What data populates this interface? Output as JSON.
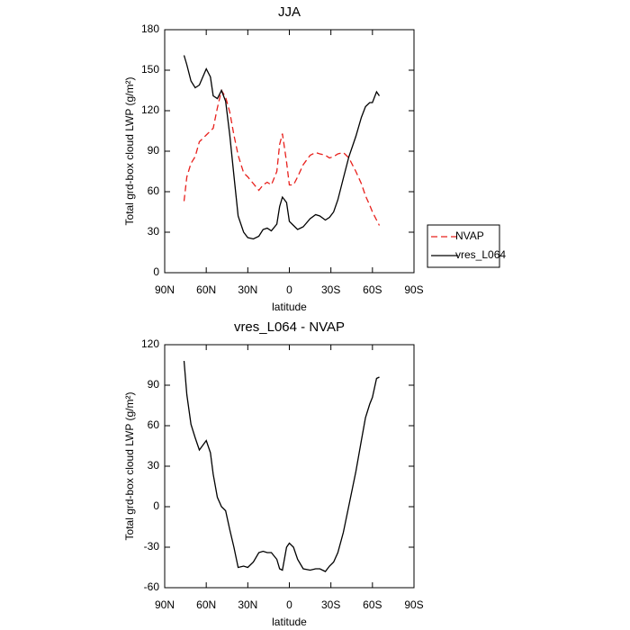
{
  "chart_data": [
    {
      "type": "line",
      "title": "JJA",
      "xlabel": "latitude",
      "ylabel": "Total grd-box cloud LWP (g/m²)",
      "x": [
        76,
        74,
        71,
        68,
        65,
        60,
        57,
        55,
        52,
        49,
        46,
        43,
        40,
        37,
        33,
        30,
        26,
        22,
        19,
        16,
        13,
        9,
        7,
        5,
        2,
        0,
        -3,
        -6,
        -10,
        -15,
        -19,
        -22,
        -26,
        -29,
        -32,
        -35,
        -39,
        -43,
        -48,
        -52,
        -55,
        -58,
        -60,
        -63,
        -65
      ],
      "series": [
        {
          "name": "NVAP",
          "color": "#e8201c",
          "dashed": true,
          "values": [
            53,
            71,
            81,
            86,
            97,
            102,
            105,
            107,
            122,
            135,
            130,
            119,
            102,
            87,
            74,
            71,
            66,
            61,
            65,
            67,
            65,
            75,
            95,
            103,
            82,
            65,
            65,
            71,
            80,
            87,
            89,
            88,
            87,
            85,
            86,
            88,
            89,
            85,
            75,
            66,
            57,
            50,
            45,
            39,
            35
          ]
        },
        {
          "name": "vres_L064",
          "color": "#000000",
          "dashed": false,
          "values": [
            161,
            154,
            142,
            137,
            139,
            151,
            145,
            131,
            129,
            135,
            127,
            102,
            72,
            42,
            30,
            26,
            25,
            27,
            32,
            33,
            31,
            36,
            49,
            56,
            52,
            38,
            35,
            32,
            34,
            40,
            43,
            42,
            39,
            41,
            45,
            54,
            70,
            86,
            101,
            115,
            123,
            126,
            126,
            134,
            131
          ]
        }
      ],
      "xlim": [
        90,
        -90
      ],
      "xticks": [
        {
          "value": 90,
          "label": "90N"
        },
        {
          "value": 60,
          "label": "60N"
        },
        {
          "value": 30,
          "label": "30N"
        },
        0,
        {
          "value": -30,
          "label": "30S"
        },
        {
          "value": -60,
          "label": "60S"
        },
        {
          "value": -90,
          "label": "90S"
        }
      ],
      "ylim": [
        0,
        180
      ],
      "yticks": [
        0,
        30,
        60,
        90,
        120,
        150,
        180
      ],
      "legend": "right"
    },
    {
      "type": "line",
      "title": "vres_L064 - NVAP",
      "xlabel": "latitude",
      "ylabel": "Total grd-box cloud LWP (g/m²)",
      "x": [
        76,
        74,
        71,
        68,
        65,
        60,
        57,
        55,
        52,
        49,
        46,
        43,
        40,
        37,
        33,
        30,
        26,
        22,
        19,
        16,
        13,
        9,
        7,
        5,
        2,
        0,
        -3,
        -6,
        -10,
        -15,
        -19,
        -22,
        -26,
        -29,
        -32,
        -35,
        -39,
        -43,
        -48,
        -52,
        -55,
        -58,
        -60,
        -63,
        -65
      ],
      "values": [
        108,
        83,
        61,
        51,
        42,
        49,
        40,
        24,
        7,
        0,
        -3,
        -17,
        -30,
        -45,
        -44,
        -45,
        -41,
        -34,
        -33,
        -34,
        -34,
        -39,
        -46,
        -47,
        -30,
        -27,
        -30,
        -39,
        -46,
        -47,
        -46,
        -46,
        -48,
        -44,
        -41,
        -34,
        -19,
        1,
        26,
        49,
        66,
        76,
        81,
        95,
        96
      ],
      "color": "#000000",
      "xlim": [
        90,
        -90
      ],
      "xticks": [
        {
          "value": 90,
          "label": "90N"
        },
        {
          "value": 60,
          "label": "60N"
        },
        {
          "value": 30,
          "label": "30N"
        },
        0,
        {
          "value": -30,
          "label": "30S"
        },
        {
          "value": -60,
          "label": "60S"
        },
        {
          "value": -90,
          "label": "90S"
        }
      ],
      "ylim": [
        -60,
        120
      ],
      "yticks": [
        -60,
        -30,
        0,
        30,
        60,
        90,
        120
      ]
    }
  ]
}
